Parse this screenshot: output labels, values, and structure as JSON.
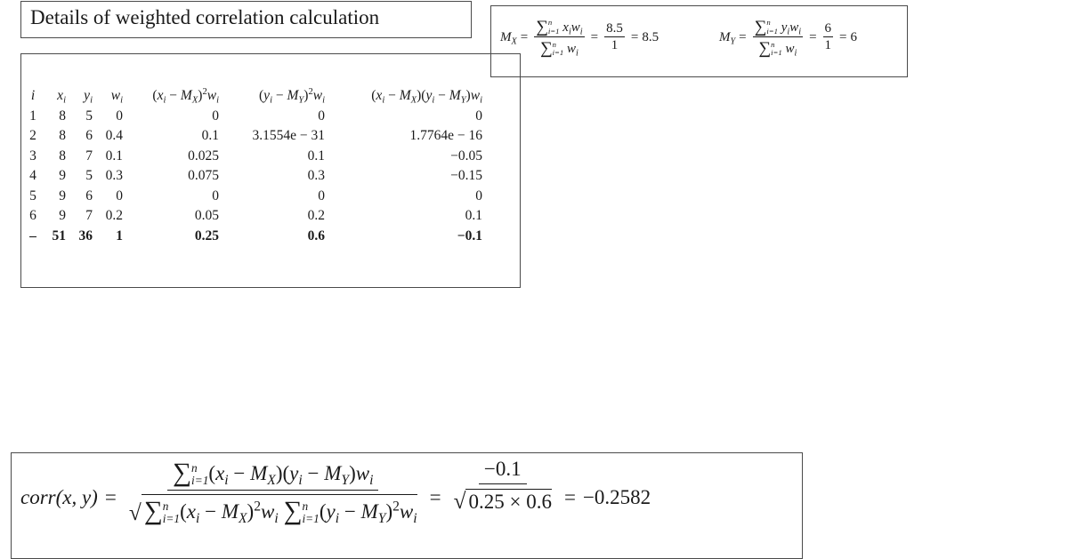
{
  "title": "Details of weighted correlation calculation",
  "means": {
    "mx": {
      "label": "M",
      "label_sub": "X",
      "numerator_term": "x",
      "denominator_term": "w",
      "sum_value": "8.5",
      "weight_total": "1",
      "result": "8.5"
    },
    "my": {
      "label": "M",
      "label_sub": "Y",
      "numerator_term": "y",
      "denominator_term": "w",
      "sum_value": "6",
      "weight_total": "1",
      "result": "6"
    },
    "sum_symbol": "∑",
    "upper_limit": "n",
    "lower_limit": "i=1",
    "index": "i",
    "equals": "="
  },
  "table": {
    "headers": [
      {
        "base": "i",
        "sub": ""
      },
      {
        "base": "x",
        "sub": "i"
      },
      {
        "base": "y",
        "sub": "i"
      },
      {
        "base": "w",
        "sub": "i"
      },
      {
        "text": "(x_i − M_X)^2 w_i"
      },
      {
        "text": "(y_i − M_Y)^2 w_i"
      },
      {
        "text": "(x_i − M_X)(y_i − M_Y) w_i"
      }
    ],
    "rows": [
      [
        "1",
        "8",
        "5",
        "0",
        "0",
        "0",
        "0"
      ],
      [
        "2",
        "8",
        "6",
        "0.4",
        "0.1",
        "3.1554e − 31",
        "1.7764e − 16"
      ],
      [
        "3",
        "8",
        "7",
        "0.1",
        "0.025",
        "0.1",
        "−0.05"
      ],
      [
        "4",
        "9",
        "5",
        "0.3",
        "0.075",
        "0.3",
        "−0.15"
      ],
      [
        "5",
        "9",
        "6",
        "0",
        "0",
        "0",
        "0"
      ],
      [
        "6",
        "9",
        "7",
        "0.2",
        "0.05",
        "0.2",
        "0.1"
      ]
    ],
    "totals": [
      "–",
      "51",
      "36",
      "1",
      "0.25",
      "0.6",
      "−0.1"
    ]
  },
  "correlation": {
    "lhs": "corr(x, y)",
    "numerator": "∑(x_i − M_X)(y_i − M_Y) w_i",
    "denominator": "√(∑(x_i − M_X)^2 w_i ∑(y_i − M_Y)^2 w_i)",
    "numeric_numerator": "−0.1",
    "numeric_denominator": "0.25 × 0.6",
    "result": "−0.2582",
    "sum_symbol": "∑",
    "upper_limit": "n",
    "lower_limit": "i=1",
    "equals": "=",
    "root": "√"
  }
}
